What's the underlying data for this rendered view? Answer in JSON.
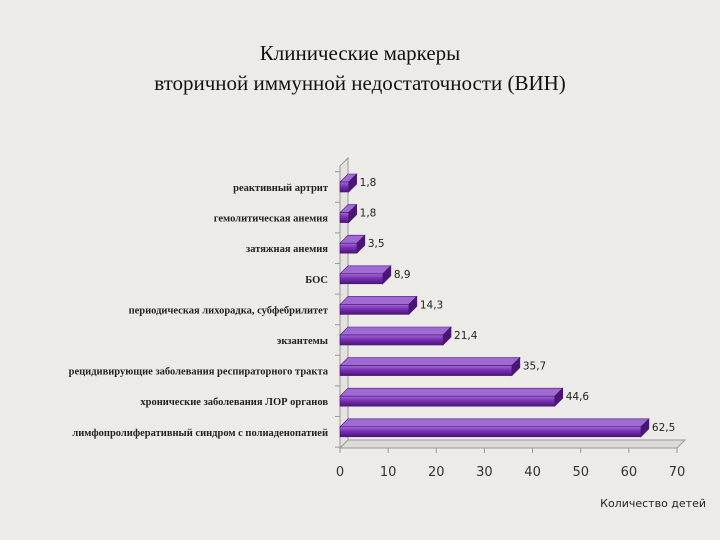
{
  "title": {
    "line1": "Клинические маркеры",
    "line2": "вторичной иммунной недостаточности (ВИН)"
  },
  "chart_data": {
    "type": "bar",
    "orientation": "horizontal",
    "categories": [
      "реактивный артрит",
      "гемолитическая анемия",
      "затяжная анемия",
      "БОС",
      "периодическая лихорадка, субфебрилитет",
      "экзантемы",
      "рецидивирующие заболевания респираторного тракта",
      "хронические заболевания ЛОР органов",
      "лимфопролиферативный синдром с полиаденопатией"
    ],
    "values": [
      1.8,
      1.8,
      3.5,
      8.9,
      14.3,
      21.4,
      35.7,
      44.6,
      62.5
    ],
    "value_labels": [
      "1,8",
      "1,8",
      "3,5",
      "8,9",
      "14,3",
      "21,4",
      "35,7",
      "44,6",
      "62,5"
    ],
    "xlim": [
      0,
      70
    ],
    "xticks": [
      0,
      10,
      20,
      30,
      40,
      50,
      60,
      70
    ],
    "xlabel": "Количество детей",
    "ylabel": "",
    "grid": false,
    "bar_color": "#7a2fb5",
    "bar_color_dark": "#4a1675",
    "bar_color_light": "#a06ad4"
  }
}
